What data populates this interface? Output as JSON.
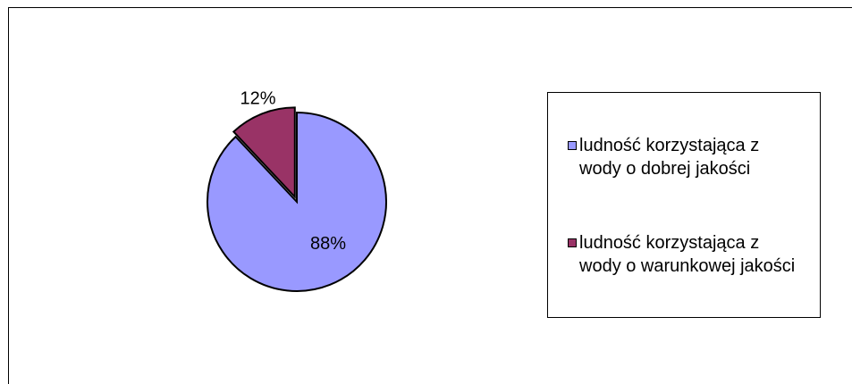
{
  "chart_data": {
    "type": "pie",
    "categories": [
      "ludność korzystająca z wody o dobrej jakości",
      "ludność korzystająca z wody o warunkowej jakości"
    ],
    "values": [
      88,
      12
    ],
    "data_labels": [
      "88%",
      "12%"
    ],
    "colors": [
      "#9999ff",
      "#993366"
    ],
    "exploded": [
      false,
      true
    ],
    "legend_position": "right"
  }
}
